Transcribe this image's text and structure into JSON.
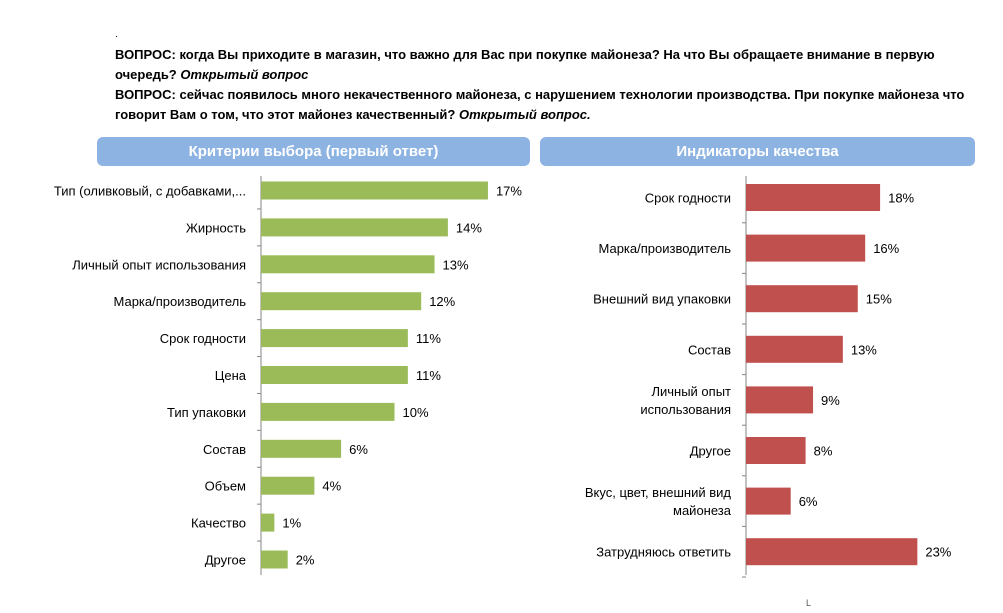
{
  "header": {
    "q1_text": "ВОПРОС: когда Вы приходите в магазин, что важно для Вас при покупке майонеза? На что Вы обращаете внимание в первую очередь?",
    "q1_tag": "Открытый вопрос",
    "q2_text": "ВОПРОС: сейчас появилось много некачественного майонеза, с нарушением технологии производства. При покупке майонеза что говорит Вам о том, что этот майонез качественный?",
    "q2_tag": "Открытый вопрос."
  },
  "colors": {
    "header_bg": "#8db3e2",
    "left_bar": "#9bbb59",
    "right_bar": "#c0504d"
  },
  "chart_data": [
    {
      "type": "bar",
      "orientation": "horizontal",
      "title": "Критерии выбора (первый ответ)",
      "categories": [
        "Тип (оливковый, с добавками,...",
        "Жирность",
        "Личный опыт использования",
        "Марка/производитель",
        "Срок годности",
        "Цена",
        "Тип упаковки",
        "Состав",
        "Объем",
        "Качество",
        "Другое"
      ],
      "values": [
        17,
        14,
        13,
        12,
        11,
        11,
        10,
        6,
        4,
        1,
        2
      ],
      "value_suffix": "%",
      "xlim": [
        0,
        17
      ],
      "grid": false,
      "data_labels": true
    },
    {
      "type": "bar",
      "orientation": "horizontal",
      "title": "Индикаторы качества",
      "categories": [
        "Срок годности",
        "Марка/производитель",
        "Внешний вид упаковки",
        "Состав",
        "Личный опыт использования",
        "Другое",
        "Вкус, цвет, внешний вид майонеза",
        "Затрудняюсь ответить"
      ],
      "values": [
        18,
        16,
        15,
        13,
        9,
        8,
        6,
        23
      ],
      "value_suffix": "%",
      "xlim": [
        0,
        23
      ],
      "grid": false,
      "data_labels": true
    }
  ]
}
